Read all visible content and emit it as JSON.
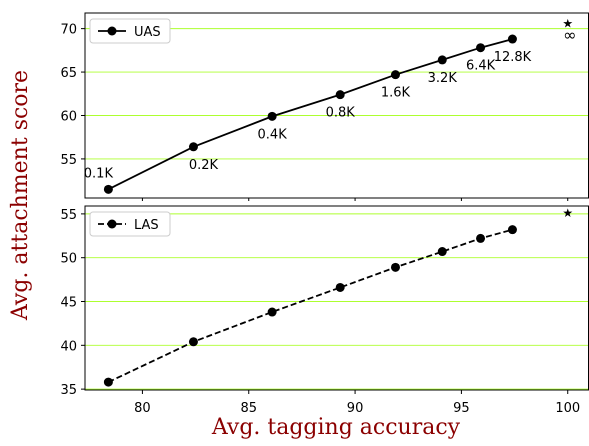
{
  "chart_data": {
    "type": "line",
    "ylabel": "Avg. attachment score",
    "xlabel": "Avg. tagging accuracy",
    "xlim": [
      77.3,
      101.0
    ],
    "xticks": [
      80,
      85,
      90,
      95,
      100
    ],
    "colors": {
      "line": "#000000",
      "grid": "#adff2f",
      "label": "#8b0000"
    },
    "panels": [
      {
        "legend": {
          "label": "UAS",
          "style": "solid",
          "placement": "top-left"
        },
        "ylim": [
          50.5,
          71.8
        ],
        "yticks": [
          55,
          60,
          65,
          70
        ],
        "grid": true,
        "points": [
          {
            "x": 78.4,
            "y": 51.5,
            "label": "0.1K"
          },
          {
            "x": 82.4,
            "y": 56.4,
            "label": "0.2K"
          },
          {
            "x": 86.1,
            "y": 59.9,
            "label": "0.4K"
          },
          {
            "x": 89.3,
            "y": 62.4,
            "label": "0.8K"
          },
          {
            "x": 91.9,
            "y": 64.7,
            "label": "1.6K"
          },
          {
            "x": 94.1,
            "y": 66.4,
            "label": "3.2K"
          },
          {
            "x": 95.9,
            "y": 67.8,
            "label": "6.4K"
          },
          {
            "x": 97.4,
            "y": 68.8,
            "label": "12.8K"
          }
        ],
        "star": {
          "x": 100.0,
          "y": 70.6,
          "label": "∞"
        }
      },
      {
        "legend": {
          "label": "LAS",
          "style": "dashed",
          "placement": "top-left"
        },
        "ylim": [
          34.9,
          55.9
        ],
        "yticks": [
          35,
          40,
          45,
          50,
          55
        ],
        "grid": true,
        "points": [
          {
            "x": 78.4,
            "y": 35.8
          },
          {
            "x": 82.4,
            "y": 40.4
          },
          {
            "x": 86.1,
            "y": 43.8
          },
          {
            "x": 89.3,
            "y": 46.6
          },
          {
            "x": 91.9,
            "y": 48.9
          },
          {
            "x": 94.1,
            "y": 50.7
          },
          {
            "x": 95.9,
            "y": 52.2
          },
          {
            "x": 97.4,
            "y": 53.2
          }
        ],
        "star": {
          "x": 100.0,
          "y": 55.1
        }
      }
    ]
  }
}
